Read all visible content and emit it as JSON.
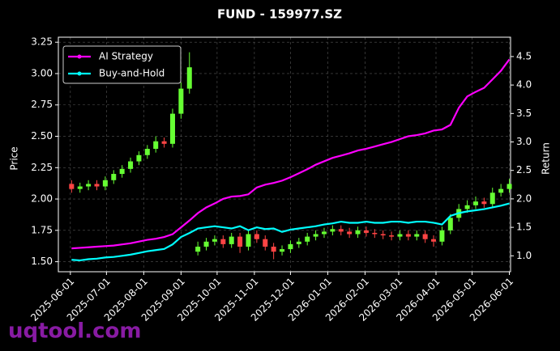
{
  "chart_data": {
    "type": "candlestick-dual",
    "title": "FUND - 159977.SZ",
    "ylabel": "Price",
    "y2label": "Return",
    "watermark": "uqtool.com",
    "x": [
      "2025-06-02",
      "2025-06-09",
      "2025-06-16",
      "2025-06-23",
      "2025-06-30",
      "2025-07-07",
      "2025-07-14",
      "2025-07-21",
      "2025-07-28",
      "2025-08-04",
      "2025-08-11",
      "2025-08-18",
      "2025-08-25",
      "2025-09-01",
      "2025-09-08",
      "2025-09-15",
      "2025-09-22",
      "2025-09-29",
      "2025-10-06",
      "2025-10-13",
      "2025-10-20",
      "2025-10-27",
      "2025-11-03",
      "2025-11-10",
      "2025-11-17",
      "2025-11-24",
      "2025-12-01",
      "2025-12-08",
      "2025-12-15",
      "2025-12-22",
      "2025-12-29",
      "2026-01-05",
      "2026-01-12",
      "2026-01-19",
      "2026-01-26",
      "2026-02-02",
      "2026-02-09",
      "2026-02-16",
      "2026-02-23",
      "2026-03-02",
      "2026-03-09",
      "2026-03-16",
      "2026-03-23",
      "2026-03-30",
      "2026-04-06",
      "2026-04-13",
      "2026-04-20",
      "2026-04-27",
      "2026-05-04",
      "2026-05-11",
      "2026-05-18",
      "2026-05-25",
      "2026-06-01"
    ],
    "candles": {
      "open": [
        2.12,
        2.08,
        2.1,
        2.12,
        2.1,
        2.15,
        2.2,
        2.24,
        2.3,
        2.35,
        2.4,
        2.46,
        2.44,
        2.68,
        2.88,
        1.58,
        1.62,
        1.66,
        1.68,
        1.64,
        1.7,
        1.62,
        1.72,
        1.68,
        1.62,
        1.58,
        1.6,
        1.64,
        1.66,
        1.7,
        1.72,
        1.74,
        1.76,
        1.74,
        1.72,
        1.75,
        1.73,
        1.72,
        1.71,
        1.7,
        1.72,
        1.7,
        1.72,
        1.68,
        1.66,
        1.75,
        1.85,
        1.92,
        1.95,
        1.98,
        1.96,
        2.05,
        2.08
      ],
      "high": [
        2.15,
        2.13,
        2.15,
        2.15,
        2.18,
        2.23,
        2.27,
        2.33,
        2.38,
        2.43,
        2.5,
        2.49,
        2.72,
        2.93,
        3.17,
        1.66,
        1.69,
        1.71,
        1.71,
        1.73,
        1.73,
        1.75,
        1.75,
        1.71,
        1.65,
        1.63,
        1.67,
        1.69,
        1.73,
        1.75,
        1.77,
        1.79,
        1.79,
        1.77,
        1.78,
        1.78,
        1.76,
        1.75,
        1.74,
        1.75,
        1.75,
        1.75,
        1.75,
        1.71,
        1.78,
        1.88,
        1.96,
        1.99,
        2.02,
        2.01,
        2.09,
        2.12,
        2.16
      ],
      "low": [
        2.05,
        2.05,
        2.07,
        2.07,
        2.07,
        2.12,
        2.17,
        2.21,
        2.27,
        2.32,
        2.37,
        2.41,
        2.41,
        2.64,
        2.84,
        1.55,
        1.59,
        1.63,
        1.61,
        1.61,
        1.57,
        1.59,
        1.65,
        1.59,
        1.52,
        1.55,
        1.57,
        1.61,
        1.63,
        1.67,
        1.69,
        1.71,
        1.71,
        1.69,
        1.69,
        1.7,
        1.69,
        1.68,
        1.67,
        1.67,
        1.67,
        1.67,
        1.65,
        1.62,
        1.63,
        1.72,
        1.82,
        1.89,
        1.92,
        1.93,
        1.93,
        2.02,
        2.05
      ],
      "close": [
        2.08,
        2.1,
        2.12,
        2.1,
        2.15,
        2.2,
        2.24,
        2.3,
        2.35,
        2.4,
        2.46,
        2.44,
        2.68,
        2.88,
        3.05,
        1.62,
        1.66,
        1.68,
        1.64,
        1.7,
        1.62,
        1.72,
        1.68,
        1.62,
        1.58,
        1.6,
        1.64,
        1.66,
        1.7,
        1.72,
        1.74,
        1.76,
        1.74,
        1.72,
        1.75,
        1.73,
        1.72,
        1.71,
        1.7,
        1.72,
        1.7,
        1.72,
        1.68,
        1.66,
        1.75,
        1.85,
        1.92,
        1.95,
        1.98,
        1.96,
        2.05,
        2.08,
        2.12
      ]
    },
    "up_color": "#66ff33",
    "down_color": "#ff4444",
    "series": [
      {
        "name": "AI Strategy",
        "color": "#ff00ff",
        "axis": "y2",
        "values": [
          1.13,
          1.14,
          1.15,
          1.16,
          1.17,
          1.18,
          1.2,
          1.22,
          1.25,
          1.28,
          1.3,
          1.33,
          1.38,
          1.5,
          1.62,
          1.75,
          1.85,
          1.92,
          2.0,
          2.04,
          2.05,
          2.08,
          2.2,
          2.25,
          2.28,
          2.32,
          2.38,
          2.45,
          2.52,
          2.6,
          2.66,
          2.72,
          2.76,
          2.8,
          2.85,
          2.88,
          2.92,
          2.96,
          3.0,
          3.05,
          3.1,
          3.12,
          3.15,
          3.2,
          3.22,
          3.3,
          3.6,
          3.8,
          3.88,
          3.95,
          4.1,
          4.25,
          4.45
        ]
      },
      {
        "name": "Buy-and-Hold",
        "color": "#00ffff",
        "axis": "y2",
        "values": [
          0.93,
          0.92,
          0.94,
          0.95,
          0.97,
          0.98,
          1.0,
          1.02,
          1.05,
          1.08,
          1.1,
          1.12,
          1.2,
          1.33,
          1.4,
          1.48,
          1.5,
          1.52,
          1.5,
          1.48,
          1.52,
          1.45,
          1.5,
          1.47,
          1.48,
          1.42,
          1.46,
          1.48,
          1.5,
          1.52,
          1.55,
          1.57,
          1.6,
          1.58,
          1.58,
          1.6,
          1.58,
          1.58,
          1.6,
          1.6,
          1.58,
          1.6,
          1.6,
          1.58,
          1.55,
          1.7,
          1.75,
          1.78,
          1.8,
          1.82,
          1.85,
          1.88,
          1.92
        ]
      }
    ],
    "xlim": [
      "2025-05-22",
      "2026-06-02"
    ],
    "xticks": [
      "2025-06-01",
      "2025-07-01",
      "2025-08-01",
      "2025-09-01",
      "2025-10-01",
      "2025-11-01",
      "2025-12-01",
      "2026-01-01",
      "2026-02-01",
      "2026-03-01",
      "2026-04-01",
      "2026-05-01",
      "2026-06-01"
    ],
    "ylim": [
      1.42,
      3.29
    ],
    "yticks": [
      {
        "value": 1.5,
        "label": "1.50"
      },
      {
        "value": 1.75,
        "label": "1.75"
      },
      {
        "value": 2.0,
        "label": "2.00"
      },
      {
        "value": 2.25,
        "label": "2.25"
      },
      {
        "value": 2.5,
        "label": "2.50"
      },
      {
        "value": 2.75,
        "label": "2.75"
      },
      {
        "value": 3.0,
        "label": "3.00"
      },
      {
        "value": 3.25,
        "label": "3.25"
      }
    ],
    "y2lim": [
      0.72,
      4.84
    ],
    "y2ticks": [
      {
        "value": 1.0,
        "label": "1.0"
      },
      {
        "value": 1.5,
        "label": "1.5"
      },
      {
        "value": 2.0,
        "label": "2.0"
      },
      {
        "value": 2.5,
        "label": "2.5"
      },
      {
        "value": 3.0,
        "label": "3.0"
      },
      {
        "value": 3.5,
        "label": "3.5"
      },
      {
        "value": 4.0,
        "label": "4.0"
      },
      {
        "value": 4.5,
        "label": "4.5"
      }
    ],
    "grid": true,
    "legend": "upper-left"
  }
}
